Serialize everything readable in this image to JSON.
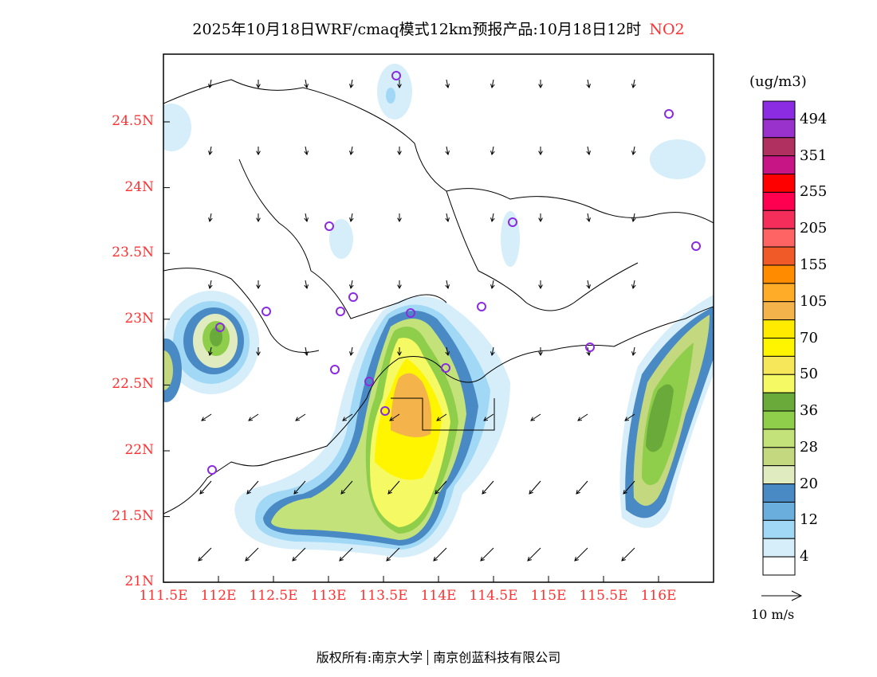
{
  "title": {
    "main": "2025年10月18日WRF/cmaq模式12km预报产品:10月18日12时",
    "pollutant": "NO2"
  },
  "map": {
    "lat_labels": [
      "24.5N",
      "24N",
      "23.5N",
      "23N",
      "22.5N",
      "22N",
      "21.5N",
      "21N"
    ],
    "lon_labels": [
      "111.5E",
      "112E",
      "112.5E",
      "113E",
      "113.5E",
      "114E",
      "114.5E",
      "115E",
      "115.5E",
      "116E"
    ]
  },
  "colorbar": {
    "units": "(ug/m3)",
    "colors": [
      "#8b2be2",
      "#9932cc",
      "#b03060",
      "#c71585",
      "#ff0000",
      "#ff0050",
      "#f52d5a",
      "#ff6464",
      "#f05a28",
      "#ff8c00",
      "#ffad28",
      "#f5b44b",
      "#ffeb00",
      "#fff500",
      "#f5e65a",
      "#f5fa64",
      "#6aaa3a",
      "#8fce4a",
      "#c4e27a",
      "#c4d880",
      "#e0ebc0",
      "#4a8ac4",
      "#6aaedd",
      "#a0d8f5",
      "#d6eefa",
      "#ffffff"
    ],
    "labels": [
      "494",
      "351",
      "255",
      "205",
      "155",
      "105",
      "70",
      "50",
      "36",
      "28",
      "20",
      "12",
      "4"
    ]
  },
  "wind_legend": "10 m/s",
  "footer": {
    "left": "版权所有:南京大学",
    "right": "南京创蓝科技有限公司"
  }
}
